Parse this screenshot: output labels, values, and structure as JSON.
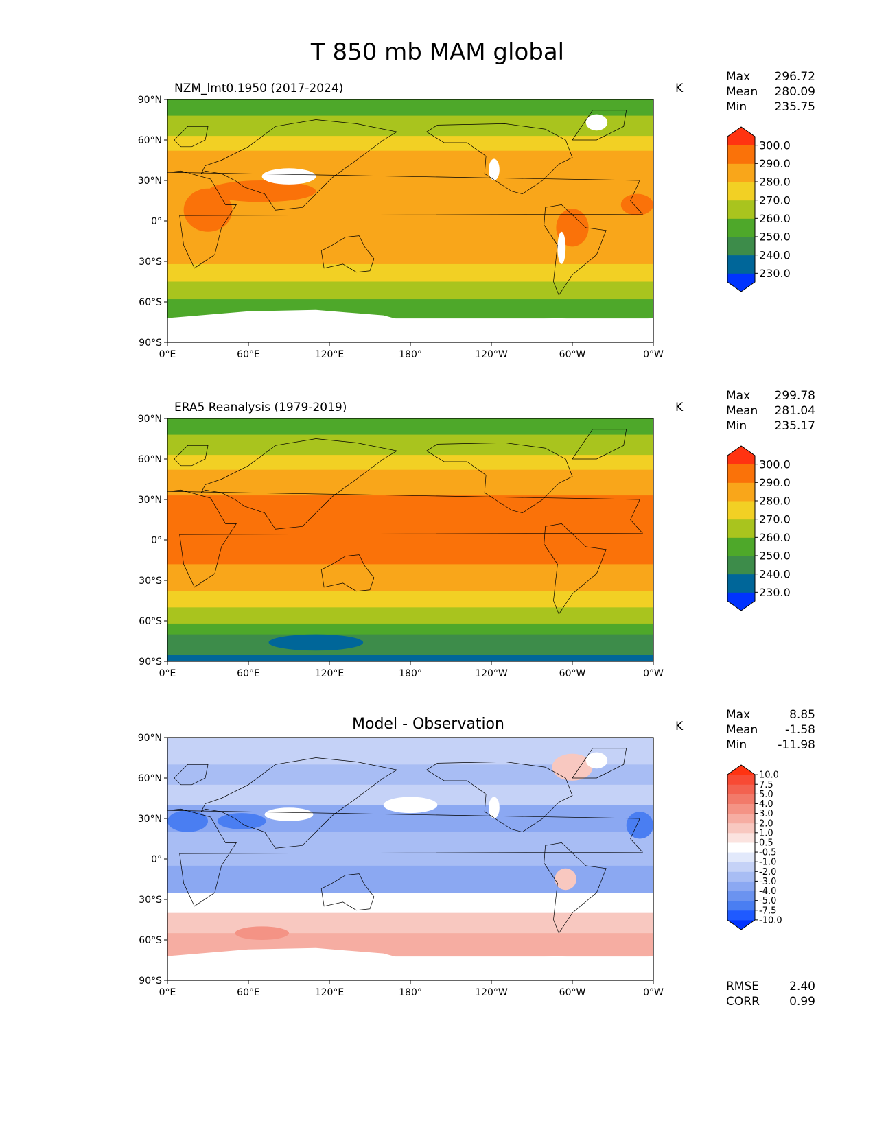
{
  "figure": {
    "title": "T 850 mb MAM global"
  },
  "axes": {
    "lat_ticks": [
      {
        "lat": 90,
        "label": "90°N"
      },
      {
        "lat": 60,
        "label": "60°N"
      },
      {
        "lat": 30,
        "label": "30°N"
      },
      {
        "lat": 0,
        "label": "0°"
      },
      {
        "lat": -30,
        "label": "30°S"
      },
      {
        "lat": -60,
        "label": "60°S"
      },
      {
        "lat": -90,
        "label": "90°S"
      }
    ],
    "lon_ticks": [
      {
        "lon": 0,
        "label": "0°E"
      },
      {
        "lon": 60,
        "label": "60°E"
      },
      {
        "lon": 120,
        "label": "120°E"
      },
      {
        "lon": 180,
        "label": "180°"
      },
      {
        "lon": 240,
        "label": "120°W"
      },
      {
        "lon": 300,
        "label": "60°W"
      },
      {
        "lon": 360,
        "label": "0°W"
      }
    ]
  },
  "chart_data": [
    {
      "type": "heatmap",
      "panel": "model",
      "title": "NZM_lmt0.1950 (2017-2024)",
      "units": "K",
      "stats": {
        "max_label": "Max",
        "max": "296.72",
        "mean_label": "Mean",
        "mean": "280.09",
        "min_label": "Min",
        "min": "235.75"
      },
      "bands": [
        {
          "lat": [
            90,
            78
          ],
          "value": 255
        },
        {
          "lat": [
            78,
            63
          ],
          "value": 265
        },
        {
          "lat": [
            63,
            52
          ],
          "value": 275
        },
        {
          "lat": [
            52,
            28
          ],
          "value": 285
        },
        {
          "lat": [
            28,
            -32
          ],
          "value": 285
        },
        {
          "lat": [
            -32,
            -45
          ],
          "value": 275
        },
        {
          "lat": [
            -45,
            -58
          ],
          "value": 265
        },
        {
          "lat": [
            -58,
            -72
          ],
          "value": 255
        }
      ],
      "blobs": [
        {
          "lon": 30,
          "lat": 8,
          "rx": 18,
          "ry": 16,
          "value": 295
        },
        {
          "lon": 70,
          "lat": 22,
          "rx": 40,
          "ry": 8,
          "value": 295
        },
        {
          "lon": 300,
          "lat": -5,
          "rx": 12,
          "ry": 14,
          "value": 295
        },
        {
          "lon": 348,
          "lat": 12,
          "rx": 12,
          "ry": 8,
          "value": 295
        }
      ],
      "masked": [
        {
          "lon": 90,
          "lat": 33,
          "rx": 20,
          "ry": 6
        },
        {
          "lon": 242,
          "lat": 38,
          "rx": 4,
          "ry": 8
        },
        {
          "lon": 292,
          "lat": -20,
          "rx": 3,
          "ry": 12
        },
        {
          "lon": 318,
          "lat": 73,
          "rx": 8,
          "ry": 6
        }
      ],
      "antarctica_masked": true,
      "colorbar": {
        "levels": [
          "230.0",
          "240.0",
          "250.0",
          "260.0",
          "270.0",
          "280.0",
          "290.0",
          "300.0"
        ],
        "colors": [
          "#0033ff",
          "#006699",
          "#3d8c4a",
          "#4ea82a",
          "#a9c41e",
          "#f2d024",
          "#f9a61a",
          "#fa7209",
          "#ff3311"
        ]
      }
    },
    {
      "type": "heatmap",
      "panel": "obs",
      "title": "ERA5 Reanalysis (1979-2019)",
      "units": "K",
      "stats": {
        "max_label": "Max",
        "max": "299.78",
        "mean_label": "Mean",
        "mean": "281.04",
        "min_label": "Min",
        "min": "235.17"
      },
      "bands": [
        {
          "lat": [
            90,
            78
          ],
          "value": 255
        },
        {
          "lat": [
            78,
            63
          ],
          "value": 265
        },
        {
          "lat": [
            63,
            52
          ],
          "value": 275
        },
        {
          "lat": [
            52,
            33
          ],
          "value": 285
        },
        {
          "lat": [
            33,
            -18
          ],
          "value": 295
        },
        {
          "lat": [
            -18,
            -38
          ],
          "value": 285
        },
        {
          "lat": [
            -38,
            -50
          ],
          "value": 275
        },
        {
          "lat": [
            -50,
            -62
          ],
          "value": 265
        },
        {
          "lat": [
            -62,
            -70
          ],
          "value": 255
        },
        {
          "lat": [
            -70,
            -85
          ],
          "value": 245
        },
        {
          "lat": [
            -85,
            -90
          ],
          "value": 235
        }
      ],
      "blobs": [
        {
          "lon": 110,
          "lat": -76,
          "rx": 35,
          "ry": 6,
          "value": 235
        }
      ],
      "masked": [],
      "antarctica_masked": false,
      "colorbar": {
        "levels": [
          "230.0",
          "240.0",
          "250.0",
          "260.0",
          "270.0",
          "280.0",
          "290.0",
          "300.0"
        ],
        "colors": [
          "#0033ff",
          "#006699",
          "#3d8c4a",
          "#4ea82a",
          "#a9c41e",
          "#f2d024",
          "#f9a61a",
          "#fa7209",
          "#ff3311"
        ]
      }
    },
    {
      "type": "heatmap",
      "panel": "diff",
      "title": "Model - Observation",
      "units": "K",
      "stats": {
        "max_label": "Max",
        "max": "8.85",
        "mean_label": "Mean",
        "mean": "-1.58",
        "min_label": "Min",
        "min": "-11.98"
      },
      "extra_stats": {
        "rmse_label": "RMSE",
        "rmse": "2.40",
        "corr_label": "CORR",
        "corr": "0.99"
      },
      "bands": [
        {
          "lat": [
            90,
            70
          ],
          "value": -1.5
        },
        {
          "lat": [
            70,
            55
          ],
          "value": -2.5
        },
        {
          "lat": [
            55,
            40
          ],
          "value": -1.5
        },
        {
          "lat": [
            40,
            20
          ],
          "value": -3.5
        },
        {
          "lat": [
            20,
            -5
          ],
          "value": -2.5
        },
        {
          "lat": [
            -5,
            -25
          ],
          "value": -3.5
        },
        {
          "lat": [
            -25,
            -40
          ],
          "value": 0.0
        },
        {
          "lat": [
            -40,
            -55
          ],
          "value": 1.5
        },
        {
          "lat": [
            -55,
            -72
          ],
          "value": 2.5
        }
      ],
      "blobs": [
        {
          "lon": 15,
          "lat": 28,
          "rx": 15,
          "ry": 8,
          "value": -6
        },
        {
          "lon": 55,
          "lat": 28,
          "rx": 18,
          "ry": 6,
          "value": -6
        },
        {
          "lon": 350,
          "lat": 25,
          "rx": 10,
          "ry": 10,
          "value": -6
        },
        {
          "lon": 180,
          "lat": 40,
          "rx": 20,
          "ry": 6,
          "value": 0.0
        },
        {
          "lon": 300,
          "lat": 68,
          "rx": 15,
          "ry": 10,
          "value": 1.5
        },
        {
          "lon": 295,
          "lat": -15,
          "rx": 8,
          "ry": 8,
          "value": 1.5
        },
        {
          "lon": 70,
          "lat": -55,
          "rx": 20,
          "ry": 5,
          "value": 3.5
        }
      ],
      "masked": [
        {
          "lon": 90,
          "lat": 33,
          "rx": 18,
          "ry": 5
        },
        {
          "lon": 242,
          "lat": 38,
          "rx": 4,
          "ry": 8
        },
        {
          "lon": 318,
          "lat": 73,
          "rx": 8,
          "ry": 6
        }
      ],
      "antarctica_masked": true,
      "colorbar": {
        "levels": [
          "-10.0",
          "-7.5",
          "-5.0",
          "-4.0",
          "-3.0",
          "-2.0",
          "-1.0",
          "-0.5",
          "0.5",
          "1.0",
          "2.0",
          "3.0",
          "4.0",
          "5.0",
          "7.5",
          "10.0"
        ],
        "colors": [
          "#0033ff",
          "#1f5aff",
          "#4a7ef2",
          "#6b93f0",
          "#8ba8f2",
          "#a8bdf4",
          "#c5d2f7",
          "#e2e9fb",
          "#ffffff",
          "#fbe3df",
          "#f8c8c0",
          "#f6ada2",
          "#f49385",
          "#f27a6a",
          "#f36250",
          "#f84a34",
          "#ff3311"
        ],
        "thresholds": [
          -10,
          -7.5,
          -5,
          -4,
          -3,
          -2,
          -1,
          -0.5,
          0.5,
          1,
          2,
          3,
          4,
          5,
          7.5,
          10
        ]
      }
    }
  ]
}
